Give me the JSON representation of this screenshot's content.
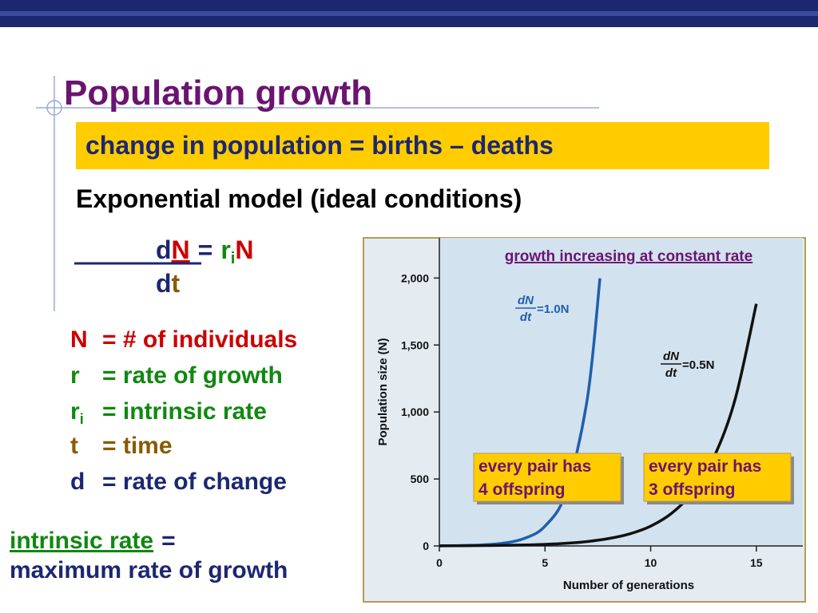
{
  "title": "Population growth",
  "highlight": "change in population = births – deaths",
  "subtitle": "Exponential model (ideal conditions)",
  "equation": {
    "d1": "d",
    "N1": "N",
    "eq": "=",
    "r": "r",
    "i": "i",
    "N2": "N",
    "d2": "d",
    "t": "t"
  },
  "definitions": [
    {
      "symbol": "N",
      "text": "= # of individuals"
    },
    {
      "symbol": "r",
      "text": "= rate of growth"
    },
    {
      "symbol": "r",
      "subscript": "i",
      "text": "= intrinsic rate"
    },
    {
      "symbol": "t",
      "text": "= time"
    },
    {
      "symbol": "d",
      "text": "= rate of change"
    }
  ],
  "note": {
    "term": "intrinsic rate",
    "eq": "=",
    "line2": "maximum rate of growth"
  },
  "chart_data": {
    "type": "line",
    "title": "growth increasing at constant rate",
    "x_label": "Number of generations",
    "y_label": "Population size (N)",
    "xlim": [
      0,
      17.2
    ],
    "ylim": [
      0,
      2300
    ],
    "xticks": [
      0,
      5,
      10,
      15
    ],
    "yticks": [
      0,
      500,
      {
        "value": 1000,
        "label": "1,000"
      },
      {
        "value": 1500,
        "label": "1,500"
      },
      {
        "value": 2000,
        "label": "2,000"
      }
    ],
    "series": [
      {
        "color": "#1f5fad",
        "x": [
          0,
          1,
          2,
          3,
          4,
          5,
          6,
          7,
          7.6
        ],
        "values": [
          1,
          2.7,
          7.4,
          20,
          55,
          148,
          403,
          1097,
          1998
        ],
        "label": {
          "numerator": "dN",
          "denominator": "dt",
          "rhs": "=1.0N"
        }
      },
      {
        "color": "#111111",
        "x": [
          0,
          1,
          2,
          3,
          4,
          5,
          6,
          7,
          8,
          9,
          10,
          11,
          12,
          13,
          14,
          15
        ],
        "values": [
          1,
          1.6,
          2.7,
          4.5,
          7.4,
          12,
          20,
          33,
          55,
          90,
          148,
          245,
          403,
          665,
          1097,
          1808
        ],
        "label": {
          "numerator": "dN",
          "denominator": "dt",
          "rhs": "=0.5N"
        }
      }
    ],
    "annotations": [
      {
        "lines": [
          "every pair has",
          "4 offspring"
        ]
      },
      {
        "lines": [
          "every pair has",
          "3 offspring"
        ]
      }
    ]
  }
}
